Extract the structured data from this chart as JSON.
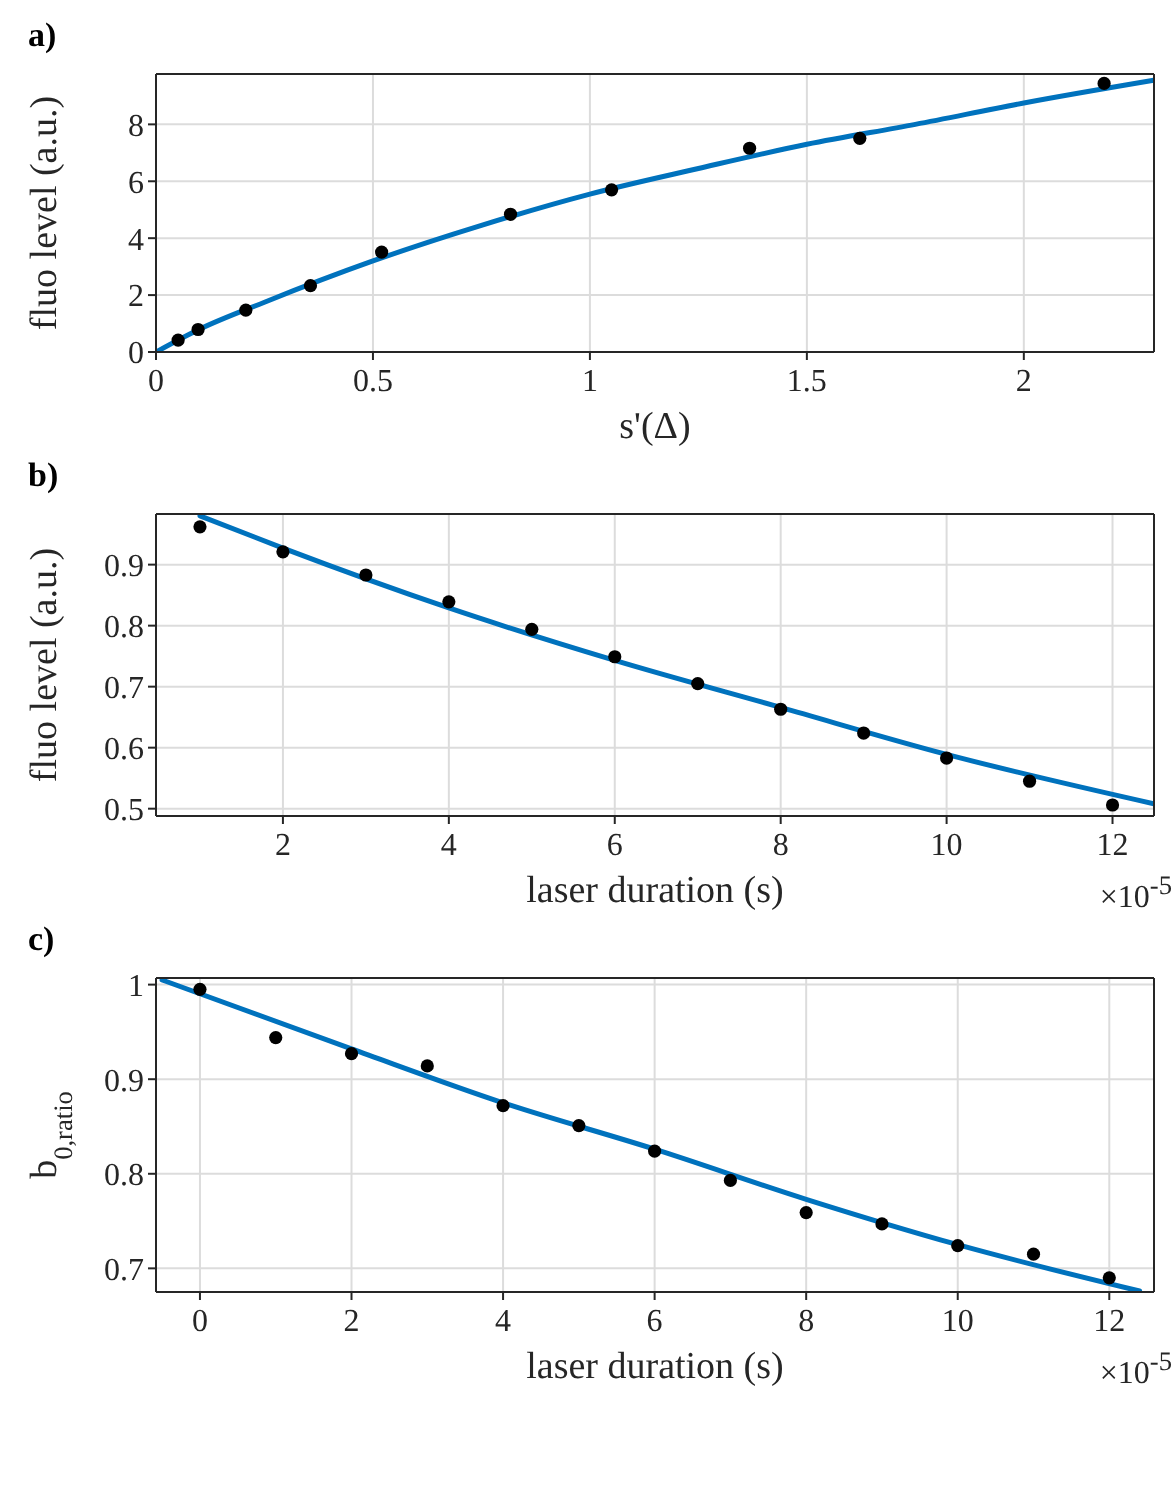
{
  "chart_data": [
    {
      "type": "scatter",
      "title": "a)",
      "xlabel": "s'(Δ)",
      "ylabel": "fluo level (a.u.)",
      "xlim": [
        0,
        2.3
      ],
      "ylim": [
        0,
        9.77
      ],
      "xticks": [
        0,
        0.5,
        1,
        1.5,
        2
      ],
      "yticks": [
        0,
        2,
        4,
        6,
        8
      ],
      "grid": true,
      "series": [
        {
          "type": "scatter",
          "marker": "circle",
          "color": "#000000",
          "x": [
            0.051,
            0.097,
            0.207,
            0.356,
            0.52,
            0.817,
            1.05,
            1.368,
            1.622,
            2.185
          ],
          "values": [
            0.42,
            0.79,
            1.47,
            2.33,
            3.51,
            4.84,
            5.7,
            7.16,
            7.51,
            9.44
          ]
        },
        {
          "type": "line",
          "marker": "none",
          "line_style": "solid",
          "color": "#0072bd",
          "x": [
            0,
            0.1,
            0.25,
            0.5,
            0.75,
            1,
            1.25,
            1.5,
            1.75,
            2,
            2.3
          ],
          "values": [
            0,
            0.8,
            1.75,
            3.2,
            4.45,
            5.55,
            6.45,
            7.3,
            8.0,
            8.75,
            9.55
          ]
        }
      ]
    },
    {
      "type": "scatter",
      "title": "b)",
      "xlabel": "laser duration (s)",
      "ylabel": "fluo level (a.u.)",
      "annotations": [
        "×10$^{-5}$"
      ],
      "xlim": [
        0.47,
        12.5
      ],
      "ylim": [
        0.488,
        0.983
      ],
      "xticks": [
        2,
        4,
        6,
        8,
        10,
        12
      ],
      "yticks": [
        0.5,
        0.6,
        0.7,
        0.8,
        0.9
      ],
      "grid": true,
      "series": [
        {
          "type": "scatter",
          "marker": "circle",
          "color": "#000000",
          "x": [
            1,
            2,
            3,
            4,
            5,
            6,
            7,
            8,
            9,
            10,
            11,
            12
          ],
          "values": [
            0.962,
            0.921,
            0.883,
            0.839,
            0.794,
            0.749,
            0.705,
            0.663,
            0.624,
            0.583,
            0.545,
            0.506
          ]
        },
        {
          "type": "line",
          "marker": "none",
          "line_style": "solid",
          "color": "#0072bd",
          "x": [
            1,
            2,
            4,
            6,
            8,
            10,
            12.5
          ],
          "values": [
            0.98,
            0.927,
            0.829,
            0.743,
            0.666,
            0.589,
            0.508
          ]
        }
      ]
    },
    {
      "type": "scatter",
      "title": "c)",
      "xlabel": "laser duration (s)",
      "ylabel": "b$_{0,ratio}$",
      "annotations": [
        "×10$^{-5}$"
      ],
      "xlim": [
        -0.58,
        12.59
      ],
      "ylim": [
        0.675,
        1.007
      ],
      "xticks": [
        0,
        2,
        4,
        6,
        8,
        10,
        12
      ],
      "yticks": [
        0.7,
        0.8,
        0.9,
        1
      ],
      "grid": true,
      "series": [
        {
          "type": "scatter",
          "marker": "circle",
          "color": "#000000",
          "x": [
            0,
            1,
            2,
            3,
            4,
            5,
            6,
            7,
            8,
            9,
            10,
            11,
            12
          ],
          "values": [
            0.995,
            0.944,
            0.927,
            0.914,
            0.872,
            0.851,
            0.824,
            0.793,
            0.759,
            0.747,
            0.724,
            0.715,
            0.69
          ]
        },
        {
          "type": "line",
          "marker": "none",
          "line_style": "solid",
          "color": "#0072bd",
          "x": [
            -0.5,
            2,
            4,
            6,
            8,
            10,
            12.4
          ],
          "values": [
            1.005,
            0.932,
            0.875,
            0.826,
            0.773,
            0.725,
            0.676
          ]
        }
      ]
    }
  ]
}
